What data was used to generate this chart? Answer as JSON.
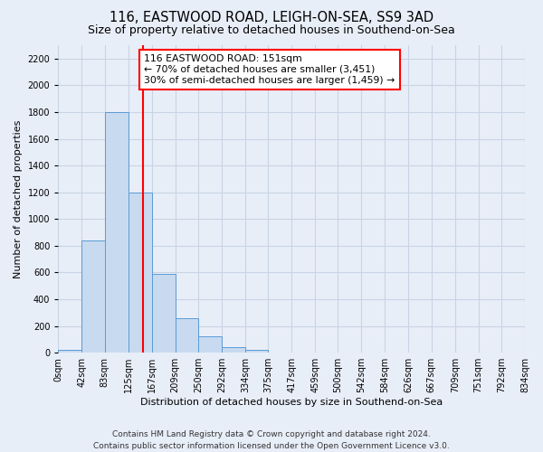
{
  "title": "116, EASTWOOD ROAD, LEIGH-ON-SEA, SS9 3AD",
  "subtitle": "Size of property relative to detached houses in Southend-on-Sea",
  "xlabel": "Distribution of detached houses by size in Southend-on-Sea",
  "ylabel": "Number of detached properties",
  "footer_line1": "Contains HM Land Registry data © Crown copyright and database right 2024.",
  "footer_line2": "Contains public sector information licensed under the Open Government Licence v3.0.",
  "bar_edges": [
    0,
    42,
    83,
    125,
    167,
    209,
    250,
    292,
    334,
    375,
    417,
    459,
    500,
    542,
    584,
    626,
    667,
    709,
    751,
    792,
    834
  ],
  "bar_heights": [
    25,
    840,
    1800,
    1200,
    590,
    255,
    120,
    40,
    25,
    0,
    0,
    0,
    0,
    0,
    0,
    0,
    0,
    0,
    0,
    0
  ],
  "bar_color": "#c8daf0",
  "bar_edge_color": "#5b9bd5",
  "vline_x": 151,
  "vline_color": "red",
  "annotation_text": "116 EASTWOOD ROAD: 151sqm\n← 70% of detached houses are smaller (3,451)\n30% of semi-detached houses are larger (1,459) →",
  "annotation_box_color": "white",
  "annotation_box_edge_color": "red",
  "xlim": [
    0,
    834
  ],
  "ylim": [
    0,
    2300
  ],
  "yticks": [
    0,
    200,
    400,
    600,
    800,
    1000,
    1200,
    1400,
    1600,
    1800,
    2000,
    2200
  ],
  "xtick_labels": [
    "0sqm",
    "42sqm",
    "83sqm",
    "125sqm",
    "167sqm",
    "209sqm",
    "250sqm",
    "292sqm",
    "334sqm",
    "375sqm",
    "417sqm",
    "459sqm",
    "500sqm",
    "542sqm",
    "584sqm",
    "626sqm",
    "667sqm",
    "709sqm",
    "751sqm",
    "792sqm",
    "834sqm"
  ],
  "grid_color": "#c8d4e4",
  "bg_color": "#e8eef8",
  "title_fontsize": 10.5,
  "subtitle_fontsize": 9,
  "annotation_fontsize": 7.8,
  "axis_label_fontsize": 8,
  "tick_fontsize": 7,
  "footer_fontsize": 6.5
}
